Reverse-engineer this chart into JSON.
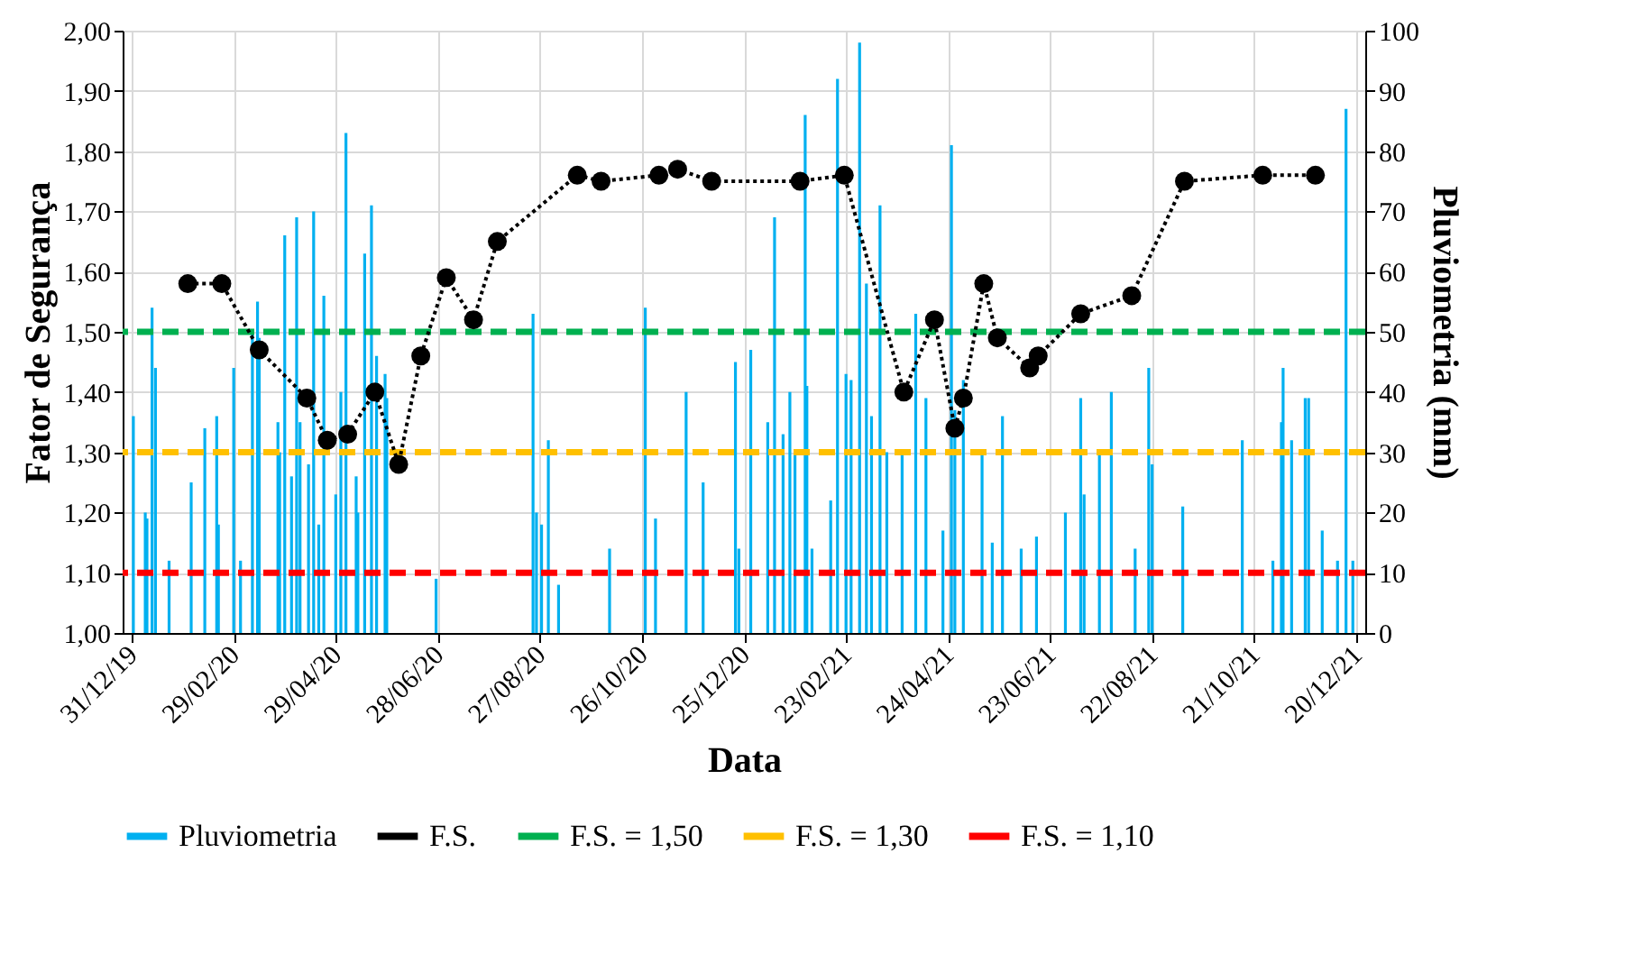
{
  "chart_data": {
    "type": "line",
    "xlabel": "Data",
    "ylabel": "Fator de Segurança",
    "y2label": "Pluviometria (mm)",
    "xlim": [
      "2019-12-31",
      "2021-12-20"
    ],
    "xticks": [
      {
        "value": "2019-12-31",
        "label": "31/12/19"
      },
      {
        "value": "2020-02-29",
        "label": "29/02/20"
      },
      {
        "value": "2020-04-29",
        "label": "29/04/20"
      },
      {
        "value": "2020-06-28",
        "label": "28/06/20"
      },
      {
        "value": "2020-08-27",
        "label": "27/08/20"
      },
      {
        "value": "2020-10-26",
        "label": "26/10/20"
      },
      {
        "value": "2020-12-25",
        "label": "25/12/20"
      },
      {
        "value": "2021-02-23",
        "label": "23/02/21"
      },
      {
        "value": "2021-04-24",
        "label": "24/04/21"
      },
      {
        "value": "2021-06-23",
        "label": "23/06/21"
      },
      {
        "value": "2021-08-22",
        "label": "22/08/21"
      },
      {
        "value": "2021-10-21",
        "label": "21/10/21"
      },
      {
        "value": "2021-12-20",
        "label": "20/12/21"
      }
    ],
    "ylim": [
      1.0,
      2.0
    ],
    "yticks": [
      {
        "value": 1.0,
        "label": "1,00"
      },
      {
        "value": 1.1,
        "label": "1,10"
      },
      {
        "value": 1.2,
        "label": "1,20"
      },
      {
        "value": 1.3,
        "label": "1,30"
      },
      {
        "value": 1.4,
        "label": "1,40"
      },
      {
        "value": 1.5,
        "label": "1,50"
      },
      {
        "value": 1.6,
        "label": "1,60"
      },
      {
        "value": 1.7,
        "label": "1,70"
      },
      {
        "value": 1.8,
        "label": "1,80"
      },
      {
        "value": 1.9,
        "label": "1,90"
      },
      {
        "value": 2.0,
        "label": "2,00"
      }
    ],
    "y2lim": [
      0,
      100
    ],
    "y2ticks": [
      0,
      10,
      20,
      30,
      40,
      50,
      60,
      70,
      80,
      90,
      100
    ],
    "grid": true,
    "legend": "bottom",
    "series": [
      {
        "name": "Pluviometria",
        "type": "bar",
        "axis": "y2",
        "color": "#00b0f0",
        "x": [
          "2020-01-01",
          "2020-01-08",
          "2020-01-09",
          "2020-01-12",
          "2020-01-14",
          "2020-01-22",
          "2020-02-04",
          "2020-02-12",
          "2020-02-19",
          "2020-02-20",
          "2020-02-29",
          "2020-03-04",
          "2020-03-11",
          "2020-03-14",
          "2020-03-15",
          "2020-03-26",
          "2020-03-27",
          "2020-03-30",
          "2020-04-03",
          "2020-04-06",
          "2020-04-08",
          "2020-04-13",
          "2020-04-16",
          "2020-04-19",
          "2020-04-22",
          "2020-04-29",
          "2020-05-02",
          "2020-05-05",
          "2020-05-11",
          "2020-05-12",
          "2020-05-16",
          "2020-05-20",
          "2020-05-23",
          "2020-05-28",
          "2020-05-29",
          "2020-06-27",
          "2020-08-23",
          "2020-08-25",
          "2020-08-28",
          "2020-09-01",
          "2020-09-07",
          "2020-10-07",
          "2020-10-28",
          "2020-11-03",
          "2020-11-21",
          "2020-12-01",
          "2020-12-20",
          "2020-12-22",
          "2020-12-29",
          "2021-01-08",
          "2021-01-12",
          "2021-01-17",
          "2021-01-21",
          "2021-01-24",
          "2021-01-30",
          "2021-01-31",
          "2021-02-03",
          "2021-02-14",
          "2021-02-18",
          "2021-02-23",
          "2021-02-26",
          "2021-03-03",
          "2021-03-07",
          "2021-03-10",
          "2021-03-15",
          "2021-03-19",
          "2021-03-28",
          "2021-04-05",
          "2021-04-11",
          "2021-04-21",
          "2021-04-26",
          "2021-04-28",
          "2021-05-03",
          "2021-05-14",
          "2021-05-20",
          "2021-05-26",
          "2021-06-06",
          "2021-06-15",
          "2021-07-02",
          "2021-07-11",
          "2021-07-13",
          "2021-07-22",
          "2021-07-29",
          "2021-08-12",
          "2021-08-20",
          "2021-08-22",
          "2021-09-09",
          "2021-10-14",
          "2021-11-01",
          "2021-11-06",
          "2021-11-07",
          "2021-11-12",
          "2021-11-20",
          "2021-11-22",
          "2021-11-30",
          "2021-12-09",
          "2021-12-14",
          "2021-12-18"
        ],
        "values": [
          36,
          20,
          19,
          54,
          44,
          12,
          25,
          34,
          36,
          18,
          44,
          12,
          50,
          55,
          49,
          35,
          30,
          66,
          26,
          69,
          35,
          28,
          70,
          18,
          56,
          23,
          40,
          83,
          26,
          20,
          63,
          71,
          46,
          43,
          39,
          9,
          53,
          20,
          18,
          32,
          8,
          14,
          54,
          19,
          40,
          25,
          45,
          14,
          47,
          35,
          69,
          33,
          40,
          30,
          86,
          41,
          14,
          22,
          92,
          43,
          42,
          98,
          58,
          36,
          71,
          30,
          30,
          53,
          39,
          17,
          81,
          37,
          42,
          30,
          15,
          36,
          14,
          16,
          20,
          39,
          23,
          30,
          40,
          14,
          44,
          28,
          21,
          32,
          12,
          35,
          44,
          32,
          39,
          39,
          17,
          12,
          87,
          12
        ]
      },
      {
        "name": "F.S.",
        "color": "#000000",
        "marker": "circle",
        "line_style": "dotted",
        "x": [
          "2020-02-02",
          "2020-02-22",
          "2020-03-15",
          "2020-04-12",
          "2020-04-24",
          "2020-05-06",
          "2020-05-22",
          "2020-06-05",
          "2020-06-18",
          "2020-07-03",
          "2020-07-19",
          "2020-08-02",
          "2020-09-18",
          "2020-10-02",
          "2020-11-05",
          "2020-11-16",
          "2020-12-06",
          "2021-01-27",
          "2021-02-22",
          "2021-03-29",
          "2021-04-16",
          "2021-04-28",
          "2021-05-03",
          "2021-05-15",
          "2021-05-23",
          "2021-06-11",
          "2021-06-16",
          "2021-07-11",
          "2021-08-10",
          "2021-09-10",
          "2021-10-26",
          "2021-11-26"
        ],
        "values": [
          1.58,
          1.58,
          1.47,
          1.39,
          1.32,
          1.33,
          1.4,
          1.28,
          1.46,
          1.59,
          1.52,
          1.65,
          1.76,
          1.75,
          1.76,
          1.77,
          1.75,
          1.75,
          1.76,
          1.4,
          1.52,
          1.34,
          1.39,
          1.58,
          1.49,
          1.44,
          1.46,
          1.53,
          1.56,
          1.75,
          1.76,
          1.76
        ]
      }
    ],
    "ref_lines": [
      {
        "axis": "y",
        "value": 1.5,
        "label": "F.S. = 1,50",
        "color": "#00b050",
        "line_style": "dashed"
      },
      {
        "axis": "y",
        "value": 1.3,
        "label": "F.S. = 1,30",
        "color": "#ffc000",
        "line_style": "dashed"
      },
      {
        "axis": "y",
        "value": 1.1,
        "label": "F.S. = 1,10",
        "color": "#ff0000",
        "line_style": "dashed"
      }
    ]
  }
}
